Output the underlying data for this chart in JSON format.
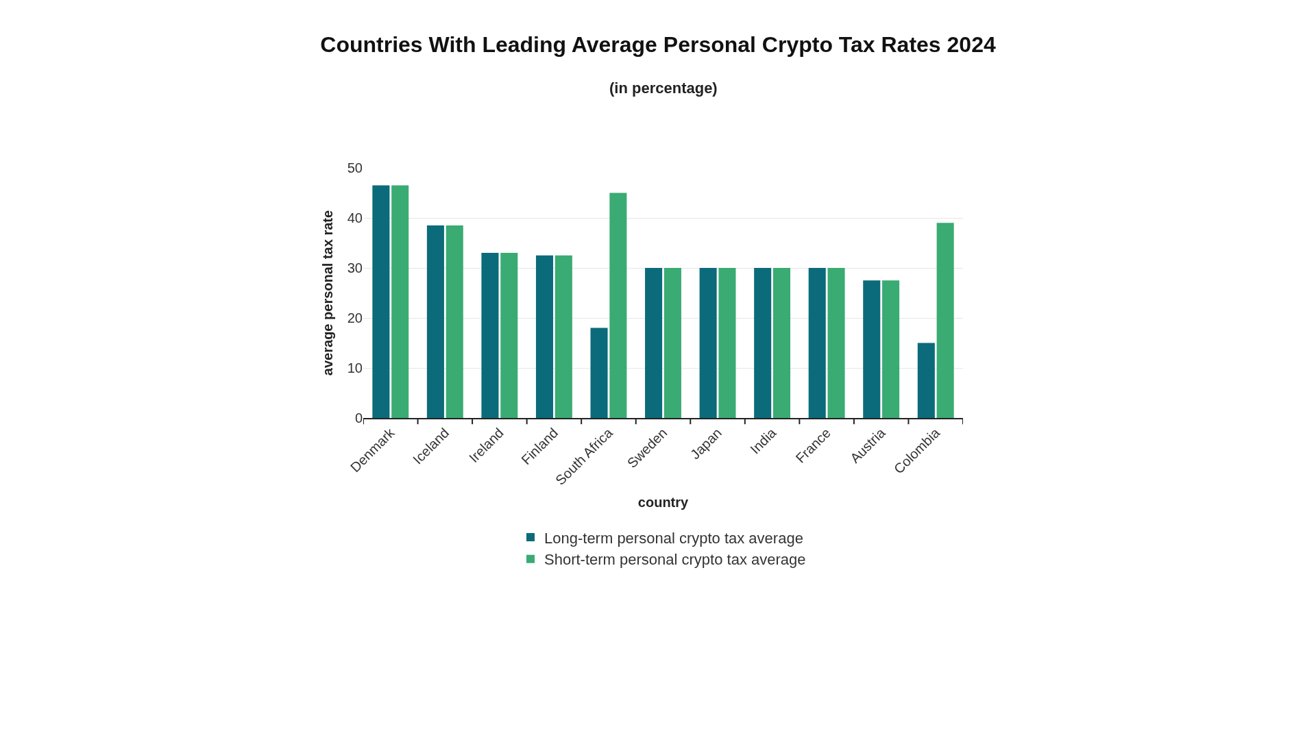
{
  "chart_data": {
    "type": "bar",
    "title": "Countries With Leading Average Personal Crypto Tax Rates 2024",
    "subtitle": "(in percentage)",
    "xlabel": "country",
    "ylabel": "average personal tax rate",
    "categories": [
      "Denmark",
      "Iceland",
      "Ireland",
      "Finland",
      "South Africa",
      "Sweden",
      "Japan",
      "India",
      "France",
      "Austria",
      "Colombia"
    ],
    "series": [
      {
        "name": "Long-term personal crypto tax average",
        "color": "#0b6b7a",
        "values": [
          46.5,
          38.5,
          33.0,
          32.5,
          18.0,
          30,
          30,
          30,
          30,
          27.5,
          15.0
        ]
      },
      {
        "name": "Short-term personal crypto tax average",
        "color": "#3aab73",
        "values": [
          46.5,
          38.5,
          33.0,
          32.5,
          45.0,
          30,
          30,
          30,
          30,
          27.5,
          39.0
        ]
      }
    ],
    "ylim": [
      0,
      50
    ],
    "yticks": [
      0,
      10,
      20,
      30,
      40,
      50
    ],
    "grid": "y",
    "legend": "bottom"
  }
}
